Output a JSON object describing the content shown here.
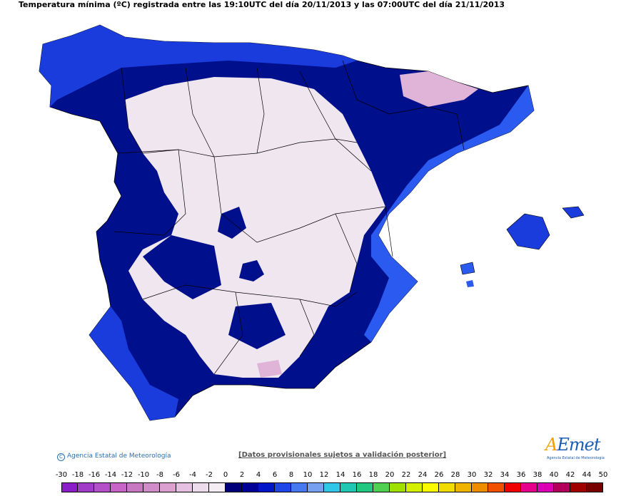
{
  "title": "Temperatura mínima (ºC) registrada entre las 19:10UTC del día 20/11/2013 y las 07:00UTC del día 21/11/2013",
  "credit": "Agencia Estatal de Meteorología",
  "disclaimer": "[Datos provisionales sujetos a validación posterior]",
  "logo": {
    "word_a": "A",
    "word_rest": "Emet",
    "sub": "Agencia Estatal de Meteorología"
  },
  "legend": {
    "labels": [
      "-30",
      "-18",
      "-16",
      "-14",
      "-12",
      "-10",
      "-8",
      "-6",
      "-4",
      "-2",
      "0",
      "2",
      "4",
      "6",
      "8",
      "10",
      "12",
      "14",
      "16",
      "18",
      "20",
      "22",
      "24",
      "26",
      "28",
      "30",
      "32",
      "34",
      "36",
      "38",
      "40",
      "42",
      "44",
      "50"
    ],
    "colors": [
      "#8a1ec8",
      "#a03cc8",
      "#b450c8",
      "#c864c8",
      "#c878c0",
      "#d08cc8",
      "#dca0d0",
      "#e6c0e0",
      "#ecdcec",
      "#f4eef4",
      "#00007a",
      "#000096",
      "#0014c8",
      "#1e46e6",
      "#4678f0",
      "#78a0f0",
      "#30c8e6",
      "#20c8b4",
      "#20c880",
      "#50d050",
      "#a0e000",
      "#d4f000",
      "#fafa00",
      "#f0dc00",
      "#f0b400",
      "#f08c00",
      "#f05000",
      "#f00000",
      "#e6008c",
      "#dc00b4",
      "#b4005a",
      "#a00000",
      "#780000"
    ]
  }
}
